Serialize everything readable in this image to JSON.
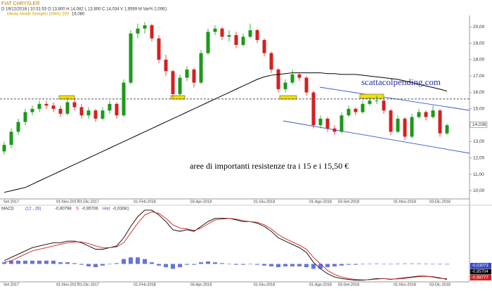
{
  "chart_data": [
    {
      "type": "candlestick",
      "title": "FIAT CHRYSLER",
      "info": "D 19/12/2018 | 10:31:53  O 13,800  H 14,082  L 13,800  C 14,034  V 1,9569 M  Var% 2,0061",
      "categories": [
        null,
        "Set 2017",
        null,
        null,
        null,
        null,
        null,
        null,
        null,
        "01-Nov-2017",
        null,
        null,
        "01-Dic-2017",
        null,
        null,
        null,
        null,
        null,
        null,
        null,
        "01-Feb-2018",
        null,
        null,
        null,
        null,
        null,
        null,
        null,
        "03-Apr-2018",
        null,
        null,
        null,
        null,
        null,
        null,
        null,
        null,
        "01-Giu-2018",
        null,
        null,
        null,
        null,
        null,
        null,
        null,
        "01-Ago-2018",
        null,
        null,
        null,
        "03-Set-2018",
        null,
        null,
        null,
        null,
        null,
        null,
        null,
        "01-Nov-2018",
        null,
        null,
        null,
        null,
        "03-Dic-2018",
        null
      ],
      "ohlc": [
        [
          12.4,
          13.0,
          12.2,
          12.8
        ],
        [
          12.8,
          13.8,
          12.6,
          13.6
        ],
        [
          13.6,
          14.4,
          13.4,
          14.2
        ],
        [
          14.2,
          15.0,
          14.0,
          14.8
        ],
        [
          14.8,
          15.2,
          14.6,
          15.0
        ],
        [
          15.0,
          15.5,
          14.8,
          15.3
        ],
        [
          15.3,
          15.5,
          15.0,
          15.2
        ],
        [
          15.2,
          15.4,
          14.8,
          15.0
        ],
        [
          15.0,
          15.2,
          14.5,
          14.7
        ],
        [
          14.7,
          15.7,
          14.6,
          15.4
        ],
        [
          15.4,
          15.6,
          14.9,
          15.1
        ],
        [
          15.1,
          15.3,
          14.4,
          14.6
        ],
        [
          14.6,
          15.1,
          14.4,
          14.9
        ],
        [
          14.9,
          15.0,
          14.2,
          14.4
        ],
        [
          14.4,
          15.1,
          14.3,
          14.9
        ],
        [
          14.9,
          15.5,
          14.7,
          15.3
        ],
        [
          15.3,
          15.4,
          14.4,
          14.6
        ],
        [
          14.6,
          16.8,
          14.5,
          16.6
        ],
        [
          16.6,
          19.8,
          16.5,
          19.6
        ],
        [
          19.6,
          20.2,
          19.3,
          19.9
        ],
        [
          19.9,
          20.3,
          19.6,
          20.1
        ],
        [
          20.1,
          20.2,
          19.1,
          19.3
        ],
        [
          19.3,
          19.5,
          17.8,
          18.0
        ],
        [
          18.0,
          18.3,
          17.0,
          17.3
        ],
        [
          17.3,
          17.4,
          15.7,
          15.9
        ],
        [
          15.9,
          17.1,
          15.8,
          16.9
        ],
        [
          16.9,
          17.6,
          16.7,
          17.4
        ],
        [
          17.4,
          17.5,
          16.3,
          16.6
        ],
        [
          16.6,
          18.6,
          16.5,
          18.4
        ],
        [
          18.4,
          19.9,
          18.3,
          19.7
        ],
        [
          19.7,
          20.1,
          19.5,
          19.9
        ],
        [
          19.9,
          20.0,
          19.2,
          19.4
        ],
        [
          19.4,
          19.8,
          19.1,
          19.5
        ],
        [
          19.5,
          19.7,
          18.7,
          18.9
        ],
        [
          18.9,
          19.6,
          18.8,
          19.4
        ],
        [
          19.4,
          20.2,
          19.3,
          19.8
        ],
        [
          19.8,
          19.9,
          19.0,
          19.2
        ],
        [
          19.2,
          19.3,
          18.2,
          18.4
        ],
        [
          18.4,
          18.5,
          17.2,
          17.4
        ],
        [
          17.4,
          17.5,
          16.0,
          16.2
        ],
        [
          16.2,
          16.8,
          16.0,
          16.6
        ],
        [
          16.6,
          17.4,
          16.5,
          17.1
        ],
        [
          17.1,
          17.2,
          16.7,
          16.9
        ],
        [
          16.9,
          17.0,
          15.8,
          16.0
        ],
        [
          16.0,
          16.1,
          13.8,
          14.0
        ],
        [
          14.0,
          14.6,
          13.8,
          14.4
        ],
        [
          14.4,
          14.5,
          13.6,
          13.8
        ],
        [
          13.8,
          14.0,
          13.4,
          13.6
        ],
        [
          13.6,
          14.8,
          13.5,
          14.6
        ],
        [
          14.6,
          15.2,
          14.5,
          15.0
        ],
        [
          15.0,
          15.1,
          14.6,
          14.8
        ],
        [
          14.8,
          15.5,
          14.7,
          15.3
        ],
        [
          15.3,
          15.7,
          15.2,
          15.5
        ],
        [
          15.5,
          15.8,
          15.3,
          15.5
        ],
        [
          15.5,
          15.6,
          14.7,
          14.9
        ],
        [
          14.9,
          15.0,
          13.4,
          13.6
        ],
        [
          13.6,
          14.6,
          13.5,
          14.4
        ],
        [
          14.4,
          14.5,
          13.1,
          13.3
        ],
        [
          13.3,
          14.7,
          13.2,
          14.5
        ],
        [
          14.5,
          15.0,
          14.4,
          14.8
        ],
        [
          14.8,
          14.9,
          14.3,
          14.5
        ],
        [
          14.5,
          15.2,
          14.4,
          14.9
        ],
        [
          14.9,
          15.0,
          13.3,
          13.5
        ],
        [
          13.5,
          14.1,
          13.4,
          14.0
        ]
      ],
      "up_color": "#1a9a1a",
      "down_color": "#d42020",
      "series": [
        {
          "name": "Media Mobili Semplici (SMA)",
          "period": 200,
          "value_label": "16,080",
          "color": "#000000",
          "values": [
            9.9,
            10.0,
            10.1,
            10.2,
            10.4,
            10.6,
            10.8,
            11.0,
            11.2,
            11.4,
            11.6,
            11.8,
            12.0,
            12.2,
            12.4,
            12.6,
            12.8,
            13.0,
            13.2,
            13.4,
            13.6,
            13.8,
            14.0,
            14.2,
            14.4,
            14.6,
            14.8,
            15.0,
            15.2,
            15.4,
            15.6,
            15.8,
            16.0,
            16.2,
            16.4,
            16.6,
            16.8,
            16.95,
            17.05,
            17.1,
            17.15,
            17.2,
            17.2,
            17.2,
            17.2,
            17.2,
            17.15,
            17.15,
            17.1,
            17.1,
            17.1,
            17.05,
            17.0,
            16.95,
            16.9,
            16.85,
            16.8,
            16.7,
            16.6,
            16.5,
            16.4,
            16.3,
            16.2,
            16.08
          ]
        }
      ],
      "ylim": [
        9.5,
        20.7
      ],
      "yticks": [
        {
          "value": 10,
          "label": "10,00"
        },
        {
          "value": 11,
          "label": "11,00"
        },
        {
          "value": 12,
          "label": "12,00"
        },
        {
          "value": 13,
          "label": "13,00"
        },
        {
          "value": 14,
          "label": "14,00"
        },
        {
          "value": 15,
          "label": "15,00"
        },
        {
          "value": 16,
          "label": "16,00"
        },
        {
          "value": 17,
          "label": "17,00"
        },
        {
          "value": 18,
          "label": "18,00"
        },
        {
          "value": 19,
          "label": "19,00"
        },
        {
          "value": 20,
          "label": "20,00"
        }
      ],
      "hline": 15.6,
      "last": {
        "value": 14.036,
        "label": "14,036"
      },
      "annotations": [
        "scattacolpending.com",
        "aree di importanti resistenze tra i 15 e i 15,50 €"
      ]
    },
    {
      "type": "macd",
      "title": "MACD",
      "params": "(12 , 26)",
      "categories": [
        null,
        "Set 2017",
        null,
        null,
        null,
        null,
        null,
        null,
        null,
        "01-Nov-2017",
        null,
        null,
        "01-Dic-2017",
        null,
        null,
        null,
        null,
        null,
        null,
        null,
        "01-Feb-2018",
        null,
        null,
        null,
        null,
        null,
        null,
        null,
        "03-Apr-2018",
        null,
        null,
        null,
        null,
        null,
        null,
        null,
        null,
        "01-Giu-2018",
        null,
        null,
        null,
        null,
        null,
        null,
        null,
        "01-Ago-2018",
        null,
        null,
        null,
        "03-Set-2018",
        null,
        null,
        null,
        null,
        null,
        null,
        null,
        "01-Nov-2018",
        null,
        null,
        null,
        null,
        "03-Dic-2018",
        null
      ],
      "series": [
        {
          "name": "MACD",
          "value_label": "-0,90798",
          "color": "#000000",
          "values": [
            0.2,
            0.4,
            0.6,
            0.8,
            1.0,
            1.1,
            1.2,
            1.3,
            1.3,
            1.4,
            1.4,
            1.3,
            1.1,
            0.9,
            0.9,
            1.0,
            1.1,
            1.6,
            2.3,
            2.9,
            3.3,
            3.3,
            3.0,
            2.6,
            2.1,
            2.0,
            2.1,
            2.0,
            2.3,
            2.6,
            2.8,
            2.8,
            2.8,
            2.7,
            2.6,
            2.6,
            2.5,
            2.3,
            2.0,
            1.6,
            1.4,
            1.2,
            1.0,
            0.7,
            0.1,
            -0.3,
            -0.6,
            -0.8,
            -0.9,
            -0.95,
            -1.0,
            -1.0,
            -0.95,
            -0.9,
            -0.9,
            -0.95,
            -0.9,
            -0.85,
            -0.8,
            -0.75,
            -0.75,
            -0.8,
            -0.88,
            -0.91
          ]
        },
        {
          "name": "S",
          "value_label": "-0,95706",
          "color": "#d42020",
          "values": [
            0.1,
            0.2,
            0.4,
            0.6,
            0.8,
            0.9,
            1.0,
            1.1,
            1.2,
            1.3,
            1.35,
            1.35,
            1.25,
            1.1,
            1.0,
            1.0,
            1.05,
            1.3,
            1.9,
            2.5,
            3.0,
            3.2,
            3.1,
            2.8,
            2.4,
            2.2,
            2.15,
            2.05,
            2.2,
            2.45,
            2.7,
            2.75,
            2.8,
            2.75,
            2.65,
            2.6,
            2.55,
            2.4,
            2.15,
            1.8,
            1.55,
            1.35,
            1.15,
            0.9,
            0.4,
            0.0,
            -0.4,
            -0.65,
            -0.8,
            -0.9,
            -0.95,
            -0.98,
            -0.97,
            -0.93,
            -0.9,
            -0.93,
            -0.92,
            -0.88,
            -0.83,
            -0.78,
            -0.76,
            -0.78,
            -0.85,
            -0.96
          ]
        },
        {
          "name": "Hist",
          "value_label": "-0,03081",
          "color": "#3344cc",
          "values": [
            0.1,
            0.2,
            0.2,
            0.2,
            0.2,
            0.2,
            0.2,
            0.2,
            0.1,
            0.1,
            0.05,
            -0.05,
            -0.15,
            -0.2,
            -0.1,
            0,
            0.05,
            0.3,
            0.4,
            0.4,
            0.3,
            0.1,
            -0.1,
            -0.2,
            -0.3,
            -0.2,
            -0.05,
            -0.05,
            0.1,
            0.15,
            0.1,
            0.05,
            0,
            -0.05,
            -0.05,
            0,
            -0.05,
            -0.1,
            -0.15,
            -0.2,
            -0.15,
            -0.15,
            -0.15,
            -0.2,
            -0.3,
            -0.3,
            -0.2,
            -0.15,
            -0.1,
            -0.05,
            -0.05,
            -0.02,
            0.02,
            0.03,
            0,
            -0.02,
            0.02,
            0.03,
            0.03,
            0.03,
            0.01,
            -0.02,
            -0.03,
            -0.03
          ]
        }
      ],
      "ylim": [
        -1.1,
        3.6
      ],
      "value_boxes": [
        {
          "label": "-0,03073",
          "color": "#3344cc"
        },
        {
          "label": "-0,95704",
          "color": "#000000"
        },
        {
          "label": "-0,98777",
          "color": "#d42020"
        }
      ]
    }
  ]
}
